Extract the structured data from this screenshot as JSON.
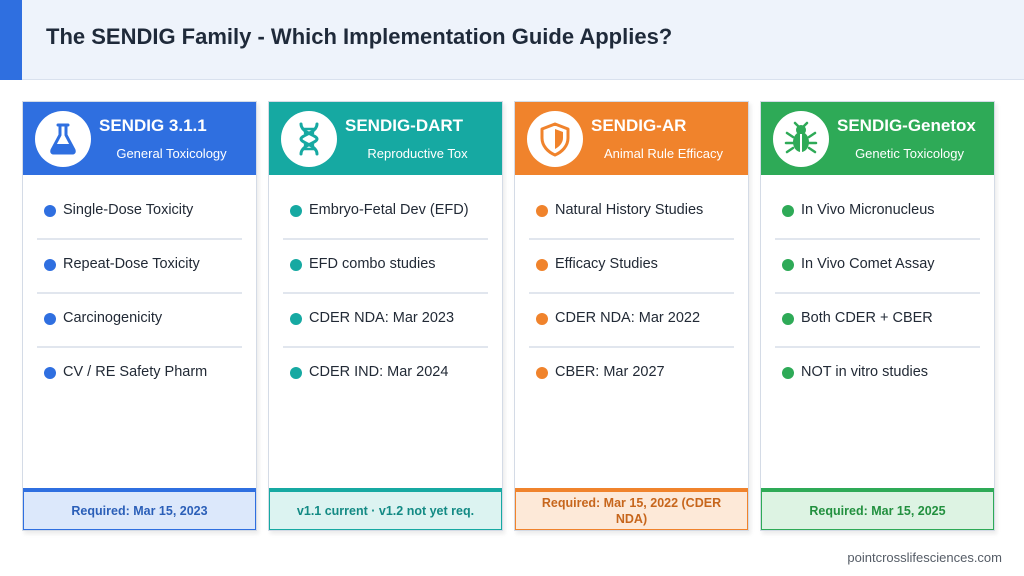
{
  "header": {
    "title": "The SENDIG Family - Which Implementation Guide Applies?"
  },
  "cards": [
    {
      "name": "SENDIG 3.1.1",
      "subtitle": "General Toxicology",
      "icon": "flask-icon",
      "color": "#2f6fe0",
      "items": [
        "Single-Dose Toxicity",
        "Repeat-Dose Toxicity",
        "Carcinogenicity",
        "CV / RE Safety Pharm"
      ],
      "footer": "Required: Mar 15, 2023",
      "footer_bg": "#dce8fb",
      "footer_text": "#2b5fb8"
    },
    {
      "name": "SENDIG-DART",
      "subtitle": "Reproductive Tox",
      "icon": "dna-icon",
      "color": "#16a9a2",
      "items": [
        "Embryo-Fetal Dev (EFD)",
        "EFD combo studies",
        "CDER NDA: Mar 2023",
        "CDER IND: Mar 2024"
      ],
      "footer": "v1.1 current  ·  v1.2 not yet req.",
      "footer_bg": "#dcf3f1",
      "footer_text": "#138a84"
    },
    {
      "name": "SENDIG-AR",
      "subtitle": "Animal Rule Efficacy",
      "icon": "shield-icon",
      "color": "#f0832c",
      "items": [
        "Natural History Studies",
        "Efficacy Studies",
        "CDER NDA: Mar 2022",
        "CBER: Mar 2027"
      ],
      "footer": "Required: Mar 15, 2022 (CDER NDA)",
      "footer_bg": "#fde9d8",
      "footer_text": "#c7661c"
    },
    {
      "name": "SENDIG-Genetox",
      "subtitle": "Genetic Toxicology",
      "icon": "bug-icon",
      "color": "#2eaa57",
      "items": [
        "In Vivo Micronucleus",
        "In Vivo Comet Assay",
        "Both CDER + CBER",
        "NOT in vitro studies"
      ],
      "footer": "Required: Mar 15, 2025",
      "footer_bg": "#ddf3e3",
      "footer_text": "#22903f"
    }
  ],
  "footer": {
    "url": "pointcrosslifesciences.com"
  }
}
